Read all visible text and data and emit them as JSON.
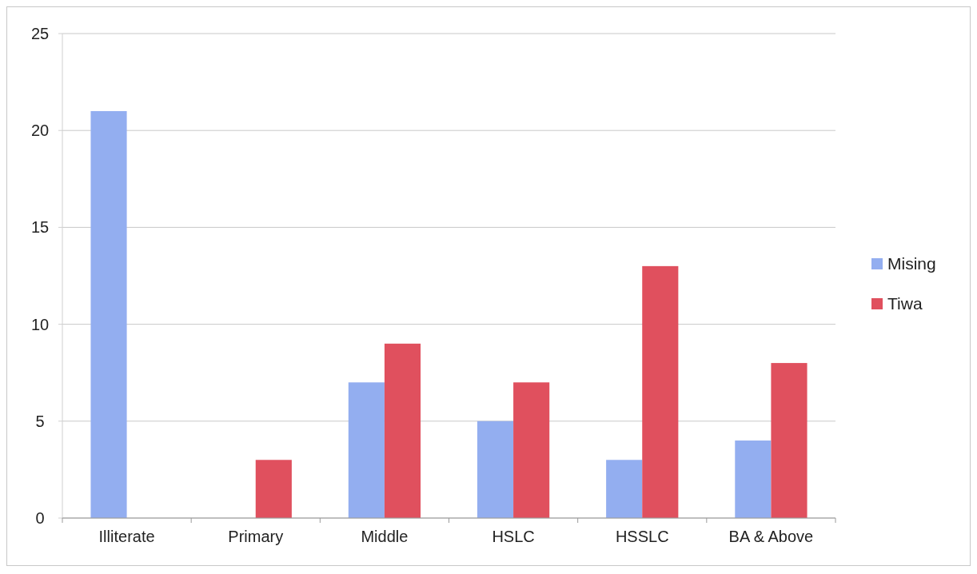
{
  "chart_data": {
    "type": "bar",
    "categories": [
      "Illiterate",
      "Primary",
      "Middle",
      "HSLC",
      "HSSLC",
      "BA & Above"
    ],
    "series": [
      {
        "name": "Mising",
        "color": "#93aef0",
        "values": [
          21,
          0,
          7,
          5,
          3,
          4
        ]
      },
      {
        "name": "Tiwa",
        "color": "#e0505e",
        "values": [
          0,
          3,
          9,
          7,
          13,
          8
        ]
      }
    ],
    "ylim": [
      0,
      25
    ],
    "yticks": [
      0,
      5,
      10,
      15,
      20,
      25
    ],
    "grid": "y",
    "legend": "right"
  }
}
